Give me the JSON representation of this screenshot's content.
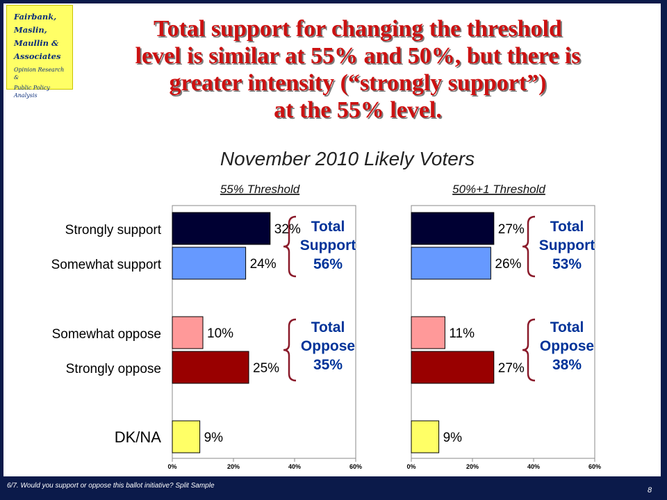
{
  "logo": {
    "firm_lines": [
      "Fairbank,",
      "Maslin,",
      "Maullin &",
      "Associates"
    ],
    "tagline_lines": [
      "Opinion Research &",
      "Public Policy Analysis"
    ]
  },
  "title_lines": [
    "Total support for changing the threshold",
    "level is similar at 55% and 50%, but there is",
    "greater intensity (“strongly support”)",
    "at the 55% level."
  ],
  "subtitle": "November 2010 Likely Voters",
  "footnote": "6/7. Would you support or oppose this ballot initiative? Split Sample",
  "page_number": "8",
  "colors": {
    "strongly_support": "#000033",
    "somewhat_support": "#6699ff",
    "somewhat_oppose": "#ff9999",
    "strongly_oppose": "#990000",
    "dk_na": "#ffff66",
    "bracket": "#8a1a2a"
  },
  "chart_data": {
    "type": "bar",
    "orientation": "horizontal",
    "categories": [
      "Strongly support",
      "Somewhat support",
      "Somewhat oppose",
      "Strongly oppose",
      "DK/NA"
    ],
    "xlim": [
      0,
      60
    ],
    "ticks": [
      "0%",
      "20%",
      "40%",
      "60%"
    ],
    "grid": false,
    "panels": [
      {
        "name": "55% Threshold",
        "values": [
          32,
          24,
          10,
          25,
          9
        ],
        "value_labels": [
          "32%",
          "24%",
          "10%",
          "25%",
          "9%"
        ],
        "support_lines": [
          "Total",
          "Support",
          "56%"
        ],
        "oppose_lines": [
          "Total",
          "Oppose",
          "35%"
        ]
      },
      {
        "name": "50%+1 Threshold",
        "values": [
          27,
          26,
          11,
          27,
          9
        ],
        "value_labels": [
          "27%",
          "26%",
          "11%",
          "27%",
          "9%"
        ],
        "support_lines": [
          "Total",
          "Support",
          "53%"
        ],
        "oppose_lines": [
          "Total",
          "Oppose",
          "38%"
        ]
      }
    ]
  }
}
